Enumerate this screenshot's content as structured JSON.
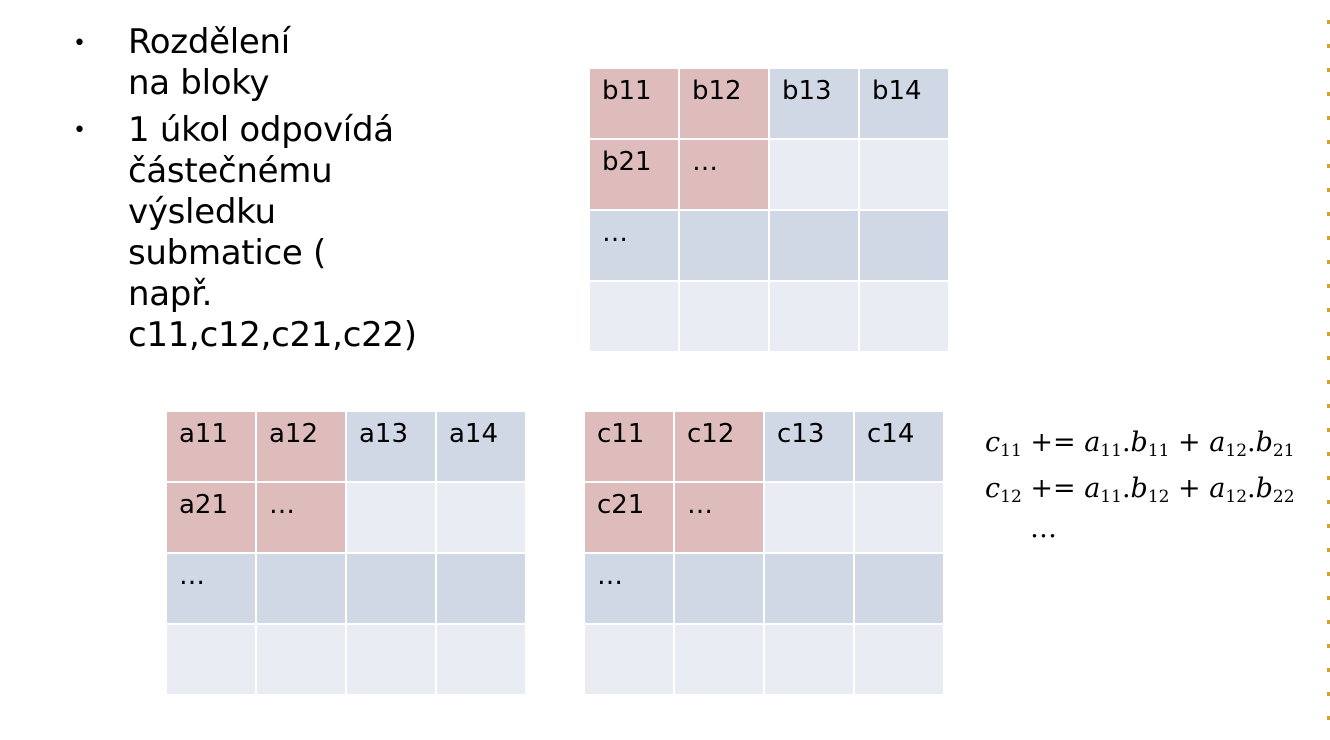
{
  "bullets": [
    {
      "dot": "•",
      "text": "Rozdělení na bloky"
    },
    {
      "dot": "•",
      "lines": [
        "1 úkol odpovídá",
        "částečnému výsledku",
        "submatice ( např.",
        "c11,c12,c21,c22)"
      ]
    }
  ],
  "matrix_b": {
    "cells": [
      [
        "b11",
        "b12",
        "b13",
        "b14"
      ],
      [
        "b21",
        "…",
        "",
        ""
      ],
      [
        "…",
        "",
        "",
        ""
      ],
      [
        "",
        "",
        "",
        ""
      ]
    ]
  },
  "matrix_a": {
    "cells": [
      [
        "a11",
        "a12",
        "a13",
        "a14"
      ],
      [
        "a21",
        "…",
        "",
        ""
      ],
      [
        "…",
        "",
        "",
        ""
      ],
      [
        "",
        "",
        "",
        ""
      ]
    ]
  },
  "matrix_c": {
    "cells": [
      [
        "c11",
        "c12",
        "c13",
        "c14"
      ],
      [
        "c21",
        "…",
        "",
        ""
      ],
      [
        "…",
        "",
        "",
        ""
      ],
      [
        "",
        "",
        "",
        ""
      ]
    ]
  },
  "colors": {
    "highlight": "#dfbcbc",
    "dark_band": "#d1d8e5",
    "light_cell": "#e9ecf2",
    "edge_marks": "#d4a22a"
  },
  "formula": {
    "line1": {
      "lhs": "c",
      "lhs_sub": "11",
      "op": " += ",
      "t1": "a",
      "t1_sub": "11",
      "t2": "b",
      "t2_sub": "11",
      "plus": " + ",
      "t3": "a",
      "t3_sub": "12",
      "t4": "b",
      "t4_sub": "21"
    },
    "line2": {
      "lhs": "c",
      "lhs_sub": "12",
      "op": " += ",
      "t1": "a",
      "t1_sub": "11",
      "t2": "b",
      "t2_sub": "12",
      "plus": " + ",
      "t3": "a",
      "t3_sub": "12",
      "t4": "b",
      "t4_sub": "22"
    },
    "ellipsis": "…"
  }
}
